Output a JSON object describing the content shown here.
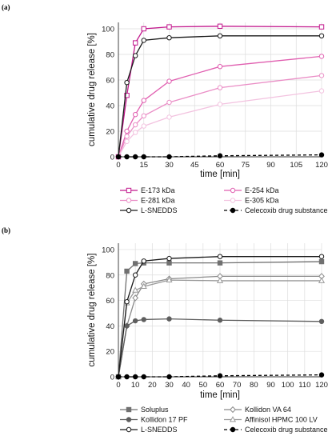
{
  "chart_data": [
    {
      "panel": "(a)",
      "type": "line",
      "xlabel": "time [min]",
      "ylabel": "cumulative drug release [%]",
      "x": [
        0,
        5,
        10,
        15,
        30,
        60,
        120
      ],
      "xticks": [
        0,
        15,
        30,
        45,
        60,
        75,
        90,
        105,
        120
      ],
      "yticks": [
        0,
        20,
        40,
        60,
        80,
        100
      ],
      "xlim": [
        0,
        120
      ],
      "ylim": [
        0,
        105
      ],
      "grid": true,
      "legend_placement": "bottom",
      "series": [
        {
          "name": "E-173 kDa",
          "color": "#c2188d",
          "marker": "open-square",
          "dash": "solid",
          "values": [
            0,
            48,
            89,
            100,
            101.5,
            102,
            101.5
          ]
        },
        {
          "name": "E-254 kDa",
          "color": "#e05fb0",
          "marker": "open-circle",
          "dash": "solid",
          "values": [
            0,
            20,
            33,
            44,
            59,
            70.5,
            78.5
          ]
        },
        {
          "name": "E-281 kDa",
          "color": "#ea8ec6",
          "marker": "open-circle",
          "dash": "solid",
          "values": [
            0,
            16,
            25,
            32,
            42.5,
            54,
            63.5
          ]
        },
        {
          "name": "E-305 kDa",
          "color": "#f3c3e0",
          "marker": "open-circle",
          "dash": "solid",
          "values": [
            0,
            12,
            19,
            24,
            31,
            41,
            51.5
          ]
        },
        {
          "name": "L-SNEDDS",
          "color": "#1a1a1a",
          "marker": "open-circle",
          "dash": "solid",
          "values": [
            0,
            58,
            79,
            91,
            93,
            94.5,
            94.5
          ]
        },
        {
          "name": "Celecoxib drug substance",
          "color": "#000000",
          "marker": "filled-circle",
          "dash": "dashed",
          "values": [
            0,
            0,
            0,
            0,
            0,
            0.8,
            1.5
          ]
        }
      ]
    },
    {
      "panel": "(b)",
      "type": "line",
      "xlabel": "time [min]",
      "ylabel": "cumulative drug release [%]",
      "x": [
        0,
        5,
        10,
        15,
        30,
        60,
        120
      ],
      "xticks": [
        0,
        10,
        20,
        30,
        40,
        50,
        60,
        70,
        80,
        90,
        100,
        110,
        120
      ],
      "yticks": [
        0,
        20,
        40,
        60,
        80,
        100
      ],
      "xlim": [
        0,
        120
      ],
      "ylim": [
        0,
        105
      ],
      "grid": true,
      "legend_placement": "bottom",
      "series": [
        {
          "name": "Soluplus",
          "color": "#707070",
          "marker": "filled-square",
          "dash": "solid",
          "values": [
            0,
            83,
            89,
            89.5,
            89.5,
            89.5,
            90.5
          ]
        },
        {
          "name": "Kollidon VA 64",
          "color": "#8a8a8a",
          "marker": "open-diamond",
          "dash": "solid",
          "values": [
            0,
            40,
            62,
            73,
            77,
            79,
            79
          ]
        },
        {
          "name": "Kollidon 17 PF",
          "color": "#5e5e5e",
          "marker": "filled-circle",
          "dash": "solid",
          "values": [
            0,
            40,
            44,
            45,
            45.5,
            44.5,
            43.5
          ]
        },
        {
          "name": "Affinisol HPMC 100 LV",
          "color": "#9a9a9a",
          "marker": "open-triangle",
          "dash": "solid",
          "values": [
            0,
            58,
            68,
            71,
            76,
            75.5,
            75.5
          ]
        },
        {
          "name": "L-SNEDDS",
          "color": "#1a1a1a",
          "marker": "open-circle",
          "dash": "solid",
          "values": [
            0,
            59,
            80,
            91,
            93,
            94.5,
            94.5
          ]
        },
        {
          "name": "Celecoxib drug substance",
          "color": "#000000",
          "marker": "filled-circle",
          "dash": "dashed",
          "values": [
            0,
            0,
            0,
            0,
            0,
            0.8,
            1.5
          ]
        }
      ]
    }
  ]
}
